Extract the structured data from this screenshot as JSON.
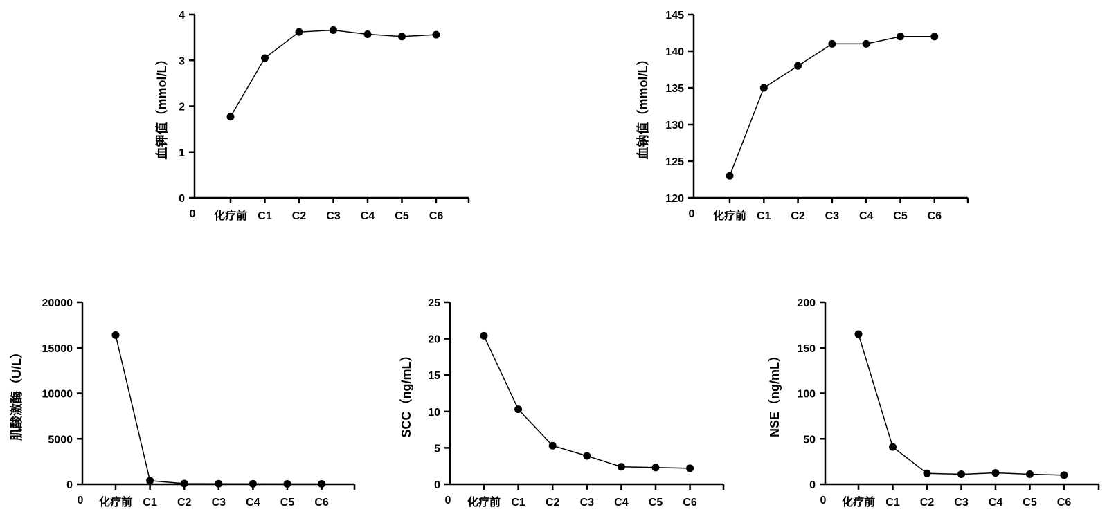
{
  "chart_data": [
    {
      "type": "line",
      "categories": [
        "化疗前",
        "C1",
        "C2",
        "C3",
        "C4",
        "C5",
        "C6"
      ],
      "series": [
        {
          "values": [
            1.77,
            3.05,
            3.62,
            3.66,
            3.57,
            3.52,
            3.56
          ]
        }
      ],
      "ylabel": "血钾值（mmol/L）",
      "ylim": [
        0,
        4
      ],
      "yticks": [
        "0",
        "1",
        "2",
        "3",
        "4"
      ],
      "x_origin_label": "0",
      "color": "#000000"
    },
    {
      "type": "line",
      "categories": [
        "化疗前",
        "C1",
        "C2",
        "C3",
        "C4",
        "C5",
        "C6"
      ],
      "series": [
        {
          "values": [
            123,
            135,
            138,
            141,
            141,
            142,
            142
          ]
        }
      ],
      "ylabel": "血钠值（mmol/L）",
      "ylim": [
        120,
        145
      ],
      "yticks": [
        "120",
        "125",
        "130",
        "135",
        "140",
        "145"
      ],
      "x_origin_label": "0",
      "color": "#000000"
    },
    {
      "type": "line",
      "categories": [
        "化疗前",
        "C1",
        "C2",
        "C3",
        "C4",
        "C5",
        "C6"
      ],
      "series": [
        {
          "values": [
            16400,
            400,
            80,
            60,
            50,
            40,
            40
          ]
        }
      ],
      "ylabel": "肌酸激酶（U/L）",
      "ylim": [
        0,
        20000
      ],
      "yticks": [
        "0",
        "5000",
        "10000",
        "15000",
        "20000"
      ],
      "x_origin_label": "0",
      "color": "#000000"
    },
    {
      "type": "line",
      "categories": [
        "化疗前",
        "C1",
        "C2",
        "C3",
        "C4",
        "C5",
        "C6"
      ],
      "series": [
        {
          "values": [
            20.4,
            10.3,
            5.3,
            3.9,
            2.4,
            2.3,
            2.2
          ]
        }
      ],
      "ylabel": "SCC（ng/mL）",
      "ylim": [
        0,
        25
      ],
      "yticks": [
        "0",
        "5",
        "10",
        "15",
        "20",
        "25"
      ],
      "x_origin_label": "0",
      "color": "#000000"
    },
    {
      "type": "line",
      "categories": [
        "化疗前",
        "C1",
        "C2",
        "C3",
        "C4",
        "C5",
        "C6"
      ],
      "series": [
        {
          "values": [
            165,
            41,
            12,
            11,
            12.5,
            11,
            10
          ]
        }
      ],
      "ylabel": "NSE（ng/mL）",
      "ylim": [
        0,
        200
      ],
      "yticks": [
        "0",
        "50",
        "100",
        "150",
        "200"
      ],
      "x_origin_label": "0",
      "color": "#000000"
    }
  ]
}
